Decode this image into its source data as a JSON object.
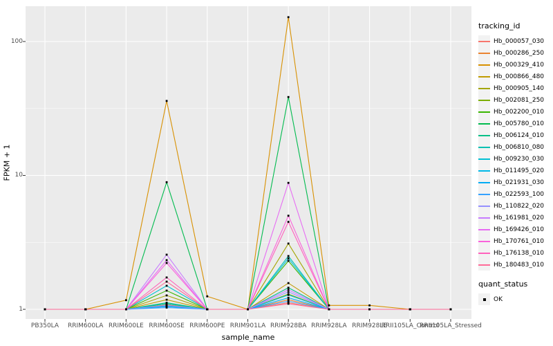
{
  "figure": {
    "background": "#FFFFFF",
    "panel_background": "#EBEBEB",
    "grid_color": "#FFFFFF",
    "axis_text_color": "#4D4D4D",
    "tick_mark_color": "#333333",
    "legend_key_background": "#F2F2F2"
  },
  "chart_data": {
    "type": "line",
    "title": "",
    "xlabel": "sample_name",
    "ylabel": "FPKM + 1",
    "y_scale": "log10",
    "ylim": [
      1,
      184
    ],
    "y_major_ticks": [
      1,
      10,
      100
    ],
    "y_minor_ticks": [
      3.162,
      31.62
    ],
    "grid": true,
    "legend_position": "right",
    "legend_titles": {
      "color": "tracking_id",
      "shape": "quant_status"
    },
    "quant_status_items": [
      "OK"
    ],
    "point_shape": "filled-square",
    "point_color": "#000000",
    "categories": [
      "PB350LA",
      "RRIM600LA",
      "RRIM600LE",
      "RRIM600SE",
      "RRIM600PE",
      "RRIM901LA",
      "RRIM928BA",
      "RRIM928LA",
      "RRIM928LE",
      "RRII105LA_Control",
      "RRII105LA_Stressed"
    ],
    "series": [
      {
        "name": "Hb_000057_030",
        "color": "#F8766D",
        "values": [
          1,
          1,
          1,
          1.05,
          1,
          1,
          1.12,
          1,
          1,
          1,
          1
        ]
      },
      {
        "name": "Hb_000286_250",
        "color": "#EA8331",
        "values": [
          1,
          1,
          1,
          1.08,
          1,
          1,
          1.18,
          1,
          1,
          1,
          1
        ]
      },
      {
        "name": "Hb_000329_410",
        "color": "#D89000",
        "values": [
          1,
          1,
          1.17,
          36,
          1.25,
          1,
          152,
          1.07,
          1.07,
          1,
          1
        ]
      },
      {
        "name": "Hb_000866_480",
        "color": "#C09B00",
        "values": [
          1,
          1,
          1,
          1.18,
          1,
          1,
          1.57,
          1,
          1,
          1,
          1
        ]
      },
      {
        "name": "Hb_000905_140",
        "color": "#A3A500",
        "values": [
          1,
          1,
          1,
          1.27,
          1,
          1,
          3.1,
          1,
          1,
          1,
          1
        ]
      },
      {
        "name": "Hb_002081_250",
        "color": "#7CAE00",
        "values": [
          1,
          1,
          1,
          1.1,
          1,
          1,
          1.3,
          1,
          1,
          1,
          1
        ]
      },
      {
        "name": "Hb_002200_010",
        "color": "#39B600",
        "values": [
          1,
          1,
          1,
          1.38,
          1,
          1,
          2.3,
          1,
          1,
          1,
          1
        ]
      },
      {
        "name": "Hb_005780_010",
        "color": "#00BB4E",
        "values": [
          1,
          1,
          1,
          8.9,
          1,
          1,
          38.5,
          1,
          1,
          1,
          1
        ]
      },
      {
        "name": "Hb_006124_010",
        "color": "#00C087",
        "values": [
          1,
          1,
          1,
          1.12,
          1,
          1,
          1.45,
          1,
          1,
          1,
          1
        ]
      },
      {
        "name": "Hb_006810_080",
        "color": "#00C0B2",
        "values": [
          1,
          1,
          1,
          1.1,
          1,
          1,
          2.5,
          1,
          1,
          1,
          1
        ]
      },
      {
        "name": "Hb_009230_030",
        "color": "#00BFD3",
        "values": [
          1,
          1,
          1,
          1.5,
          1,
          1,
          2.4,
          1,
          1,
          1,
          1
        ]
      },
      {
        "name": "Hb_011495_020",
        "color": "#00B8E7",
        "values": [
          1,
          1,
          1,
          1.06,
          1,
          1,
          1.28,
          1,
          1,
          1,
          1
        ]
      },
      {
        "name": "Hb_021931_030",
        "color": "#00ACF4",
        "values": [
          1,
          1,
          1,
          1.05,
          1,
          1,
          1.22,
          1,
          1,
          1,
          1
        ]
      },
      {
        "name": "Hb_022593_100",
        "color": "#35A2FF",
        "values": [
          1,
          1,
          1,
          1.03,
          1,
          1,
          1.15,
          1,
          1,
          1,
          1
        ]
      },
      {
        "name": "Hb_110822_020",
        "color": "#9590FF",
        "values": [
          1,
          1,
          1,
          1.07,
          1,
          1,
          1.35,
          1,
          1,
          1,
          1
        ]
      },
      {
        "name": "Hb_161981_020",
        "color": "#C77CFF",
        "values": [
          1,
          1,
          1,
          2.56,
          1,
          1,
          1.4,
          1,
          1,
          1,
          1
        ]
      },
      {
        "name": "Hb_169426_010",
        "color": "#E76BF3",
        "values": [
          1,
          1,
          1,
          2.33,
          1,
          1,
          8.8,
          1,
          1,
          1,
          1
        ]
      },
      {
        "name": "Hb_170761_010",
        "color": "#FA62DB",
        "values": [
          1,
          1,
          1,
          2.22,
          1,
          1,
          5.0,
          1,
          1,
          1,
          1
        ]
      },
      {
        "name": "Hb_176138_010",
        "color": "#FF62BC",
        "values": [
          1,
          1,
          1,
          1.73,
          1,
          1,
          4.5,
          1,
          1,
          1,
          1
        ]
      },
      {
        "name": "Hb_180483_010",
        "color": "#FF6A98",
        "values": [
          1,
          1,
          1,
          1.61,
          1,
          1,
          1.1,
          1,
          1,
          1,
          1
        ]
      }
    ]
  }
}
